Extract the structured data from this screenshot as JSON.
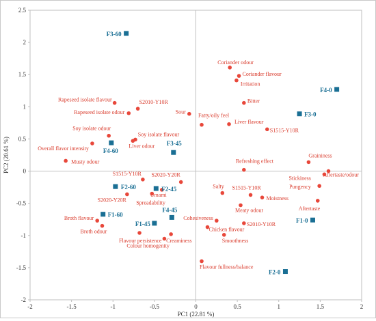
{
  "chart_data": {
    "type": "scatter",
    "title": "",
    "xlabel": "PC1 (22.81 %)",
    "ylabel": "PC2 (20.61 %)",
    "xlim": [
      -2,
      2
    ],
    "ylim": [
      -2,
      2.5
    ],
    "xticks": [
      "-2",
      "-1.5",
      "-1",
      "-0.5",
      "0",
      "0.5",
      "1",
      "1.5",
      "2"
    ],
    "yticks": [
      "-2",
      "-1.5",
      "-1",
      "-0.5",
      "0",
      "0.5",
      "1",
      "1.5",
      "2",
      "2.5"
    ],
    "grid": false,
    "legend": "none",
    "colors": {
      "attributes": "#e8473a",
      "samples": "#1a6f94",
      "axis": "#bfbfbf"
    },
    "series": [
      {
        "marker": "circle",
        "points": [
          {
            "label": "Coriander odour",
            "x": 0.41,
            "y": 1.61
          },
          {
            "label": "Coriander flavour",
            "x": 0.52,
            "y": 1.48
          },
          {
            "label": "Irritation",
            "x": 0.49,
            "y": 1.41
          },
          {
            "label": "Bitter",
            "x": 0.58,
            "y": 1.06
          },
          {
            "label": "Sour",
            "x": -0.08,
            "y": 0.89
          },
          {
            "label": "Fatty/oily feel",
            "x": 0.07,
            "y": 0.72
          },
          {
            "label": "Liver flavour",
            "x": 0.4,
            "y": 0.73
          },
          {
            "label": "S1515-Y10R",
            "x": 0.86,
            "y": 0.65
          },
          {
            "label": "Rapeseed isolate flavour",
            "x": -0.98,
            "y": 1.06
          },
          {
            "label": "S2010-Y10R",
            "x": -0.7,
            "y": 0.97
          },
          {
            "label": "Rapeseed isolate odour",
            "x": -0.81,
            "y": 0.9
          },
          {
            "label": "Soy isolate odour",
            "x": -1.05,
            "y": 0.55
          },
          {
            "label": "Soy isolate flavour",
            "x": -0.73,
            "y": 0.49
          },
          {
            "label": "Liver odour",
            "x": -0.76,
            "y": 0.47
          },
          {
            "label": "Overall flavor intensity",
            "x": -1.25,
            "y": 0.43
          },
          {
            "label": "Musty odour",
            "x": -1.57,
            "y": 0.16
          },
          {
            "label": "Refreshing effect",
            "x": 0.58,
            "y": 0.02
          },
          {
            "label": "Graininess",
            "x": 1.36,
            "y": 0.14
          },
          {
            "label": "Aftertaste/odour",
            "x": 1.6,
            "y": 0.0
          },
          {
            "label": "Stickiness",
            "x": 1.55,
            "y": -0.05
          },
          {
            "label": "Pungency",
            "x": 1.49,
            "y": -0.23
          },
          {
            "label": "Aftertaste",
            "x": 1.47,
            "y": -0.46
          },
          {
            "label": "S1515-Y10R",
            "x": -0.64,
            "y": -0.13
          },
          {
            "label": "S2020-Y20R",
            "x": -0.18,
            "y": -0.17
          },
          {
            "label": "Umami",
            "x": -0.41,
            "y": -0.29
          },
          {
            "label": "S2020-Y20R",
            "x": -0.83,
            "y": -0.36
          },
          {
            "label": "Spreadability",
            "x": -0.53,
            "y": -0.35
          },
          {
            "label": "Salty",
            "x": 0.32,
            "y": -0.34
          },
          {
            "label": "S1515-Y10R",
            "x": 0.66,
            "y": -0.37
          },
          {
            "label": "Moistness",
            "x": 0.8,
            "y": -0.41
          },
          {
            "label": "Meaty odour",
            "x": 0.54,
            "y": -0.53
          },
          {
            "label": "Broth flavour",
            "x": -1.19,
            "y": -0.77
          },
          {
            "label": "Broth odour",
            "x": -1.13,
            "y": -0.85
          },
          {
            "label": "Cohesiveness",
            "x": 0.25,
            "y": -0.77
          },
          {
            "label": "S2010-Y10R",
            "x": 0.58,
            "y": -0.81
          },
          {
            "label": "Chicken flavour",
            "x": 0.14,
            "y": -0.87
          },
          {
            "label": "Flavour persistence",
            "x": -0.68,
            "y": -0.96
          },
          {
            "label": "Creaminess",
            "x": -0.3,
            "y": -0.98
          },
          {
            "label": "Smoothness",
            "x": 0.34,
            "y": -0.99
          },
          {
            "label": "Colour homogenity",
            "x": -0.38,
            "y": -1.05
          },
          {
            "label": "Flavour fullness/balance",
            "x": 0.07,
            "y": -1.4
          }
        ]
      },
      {
        "marker": "square",
        "points": [
          {
            "label": "F3-60",
            "x": -0.84,
            "y": 2.14
          },
          {
            "label": "F4-0",
            "x": 1.7,
            "y": 1.27
          },
          {
            "label": "F3-0",
            "x": 1.25,
            "y": 0.89
          },
          {
            "label": "F3-45",
            "x": -0.27,
            "y": 0.29
          },
          {
            "label": "F4-60",
            "x": -1.02,
            "y": 0.44
          },
          {
            "label": "F2-60",
            "x": -0.97,
            "y": -0.24
          },
          {
            "label": "F2-45",
            "x": -0.48,
            "y": -0.27
          },
          {
            "label": "F1-60",
            "x": -1.12,
            "y": -0.67
          },
          {
            "label": "F4-45",
            "x": -0.29,
            "y": -0.72
          },
          {
            "label": "F1-45",
            "x": -0.5,
            "y": -0.81
          },
          {
            "label": "F1-0",
            "x": 1.41,
            "y": -0.76
          },
          {
            "label": "F2-0",
            "x": 1.08,
            "y": -1.56
          }
        ]
      }
    ]
  }
}
